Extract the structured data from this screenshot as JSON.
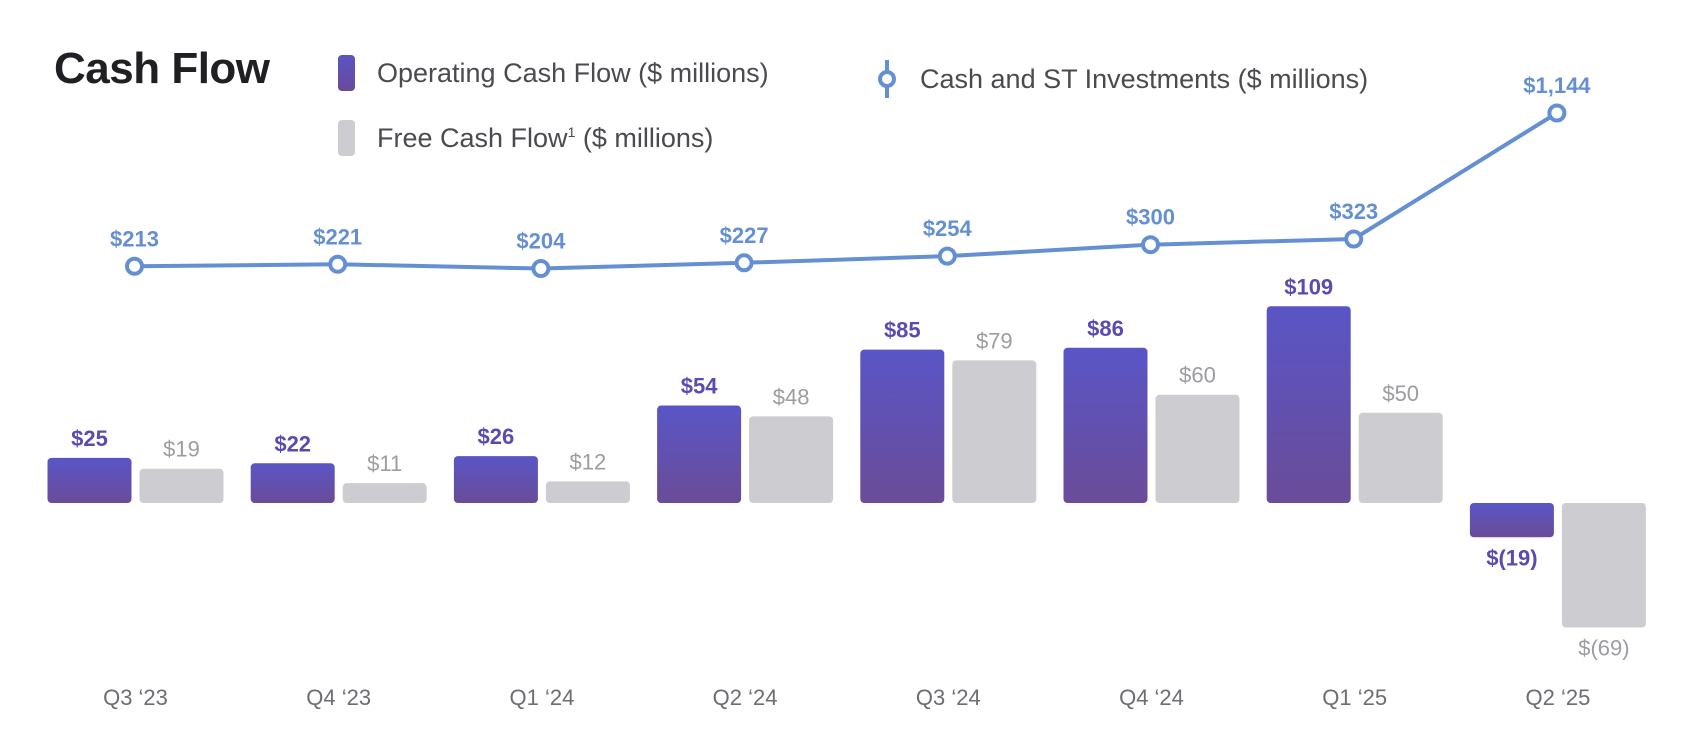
{
  "title": "Cash Flow",
  "legend": {
    "ocf_label": "Operating Cash Flow ($ millions)",
    "fcf_label": "Free Cash Flow",
    "fcf_footnote": "1",
    "fcf_suffix": " ($ millions)",
    "cash_label": "Cash and ST Investments ($ millions)"
  },
  "colors": {
    "ocf_top": "#5a55c6",
    "ocf_bottom": "#6a4c98",
    "ocf_label": "#5b4bb0",
    "fcf": "#cdcdd1",
    "fcf_label": "#9c9ca1",
    "line": "#6490d3",
    "axis_label": "#6d6d72"
  },
  "chart_data": {
    "type": "bar",
    "categories": [
      "Q3 ‘23",
      "Q4 ‘23",
      "Q1 ‘24",
      "Q2 ‘24",
      "Q3 ‘24",
      "Q4 ‘24",
      "Q1 ‘25",
      "Q2 ‘25"
    ],
    "series": [
      {
        "name": "Operating Cash Flow ($ millions)",
        "type": "bar",
        "values": [
          25,
          22,
          26,
          54,
          85,
          86,
          109,
          -19
        ],
        "labels": [
          "$25",
          "$22",
          "$26",
          "$54",
          "$85",
          "$86",
          "$109",
          "$(19)"
        ]
      },
      {
        "name": "Free Cash Flow ($ millions)",
        "type": "bar",
        "values": [
          19,
          11,
          12,
          48,
          79,
          60,
          50,
          -69
        ],
        "labels": [
          "$19",
          "$11",
          "$12",
          "$48",
          "$79",
          "$60",
          "$50",
          "$(69)"
        ]
      },
      {
        "name": "Cash and ST Investments ($ millions)",
        "type": "line",
        "values": [
          213,
          221,
          204,
          227,
          254,
          300,
          323,
          1144
        ],
        "labels": [
          "$213",
          "$221",
          "$204",
          "$227",
          "$254",
          "$300",
          "$323",
          "$1,144"
        ]
      }
    ],
    "grid": false,
    "legend_position": "top"
  }
}
